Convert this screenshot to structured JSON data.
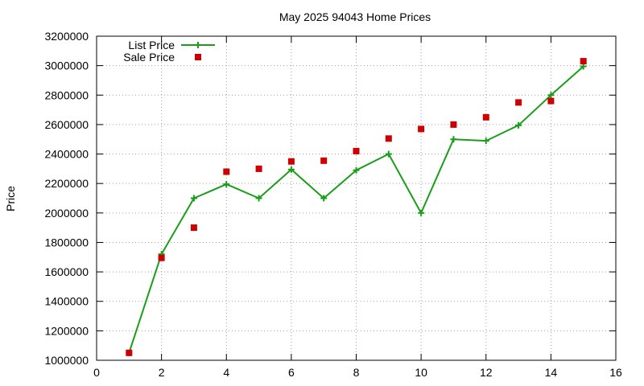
{
  "chart_data": {
    "type": "scatter",
    "title": "May 2025 94043 Home Prices",
    "xlabel": "",
    "ylabel": "Price",
    "xlim": [
      0,
      16
    ],
    "ylim": [
      1000000,
      3200000
    ],
    "xticks": [
      0,
      2,
      4,
      6,
      8,
      10,
      12,
      14,
      16
    ],
    "yticks": [
      1000000,
      1200000,
      1400000,
      1600000,
      1800000,
      2000000,
      2200000,
      2400000,
      2600000,
      2800000,
      3000000,
      3200000
    ],
    "grid": true,
    "legend_position": "top-left",
    "series": [
      {
        "name": "List Price",
        "style": "line-points",
        "marker": "plus",
        "color": "#1a9e1a",
        "x": [
          1,
          2,
          3,
          4,
          5,
          6,
          7,
          8,
          9,
          10,
          11,
          12,
          13,
          14,
          15
        ],
        "y": [
          1050000,
          1720000,
          2100000,
          2195000,
          2100000,
          2295000,
          2100000,
          2290000,
          2400000,
          2000000,
          2500000,
          2490000,
          2595000,
          2800000,
          2995000
        ]
      },
      {
        "name": "Sale Price",
        "style": "points",
        "marker": "square",
        "color": "#cc0000",
        "x": [
          1,
          2,
          3,
          4,
          5,
          6,
          7,
          8,
          9,
          10,
          11,
          12,
          13,
          14,
          15
        ],
        "y": [
          1050000,
          1695000,
          1900000,
          2280000,
          2300000,
          2350000,
          2355000,
          2420000,
          2505000,
          2570000,
          2600000,
          2650000,
          2750000,
          2760000,
          3030000
        ]
      }
    ]
  }
}
